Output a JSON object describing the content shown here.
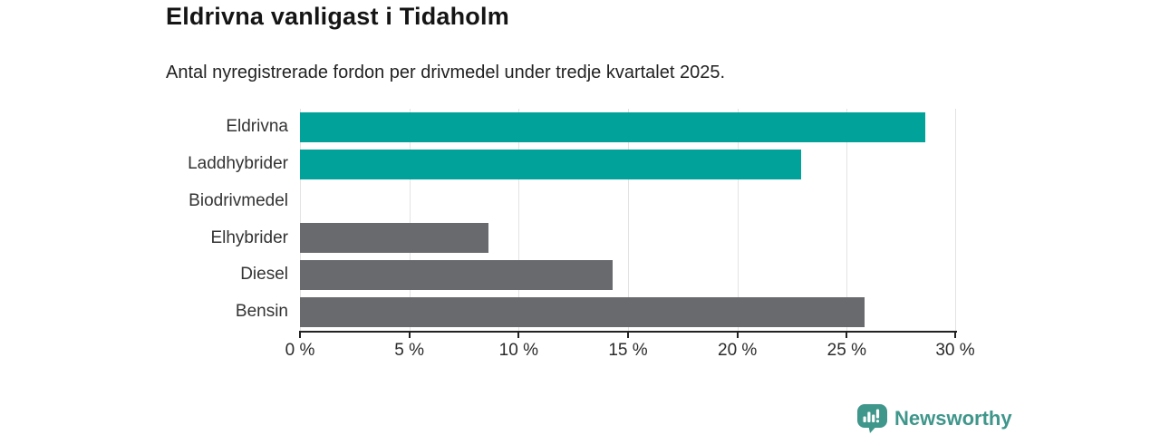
{
  "title": "Eldrivna vanligast i Tidaholm",
  "subtitle": "Antal nyregistrerade fordon per drivmedel under tredje kvartalet 2025.",
  "chart_data": {
    "type": "bar",
    "orientation": "horizontal",
    "categories": [
      "Eldrivna",
      "Laddhybrider",
      "Biodrivmedel",
      "Elhybrider",
      "Diesel",
      "Bensin"
    ],
    "values": [
      28.6,
      22.9,
      0,
      8.6,
      14.3,
      25.8
    ],
    "unit": "%",
    "bar_colors": [
      "#00a299",
      "#00a299",
      "#00a299",
      "#696a6e",
      "#696a6e",
      "#696a6e"
    ],
    "title": "Eldrivna vanligast i Tidaholm",
    "xlabel": "",
    "ylabel": "",
    "xlim": [
      0,
      30
    ],
    "x_ticks": [
      "0 %",
      "5 %",
      "10 %",
      "15 %",
      "20 %",
      "25 %",
      "30 %"
    ],
    "grid": "vertical",
    "legend": "none"
  },
  "colors": {
    "accent_teal": "#00a299",
    "bar_gray": "#696a6e",
    "axis": "#222222",
    "gridline": "#e3e3e3",
    "logo_teal": "#3f968b"
  },
  "footer": {
    "brand": "Newsworthy",
    "logo_icon": "bar-chart-pin-icon"
  }
}
